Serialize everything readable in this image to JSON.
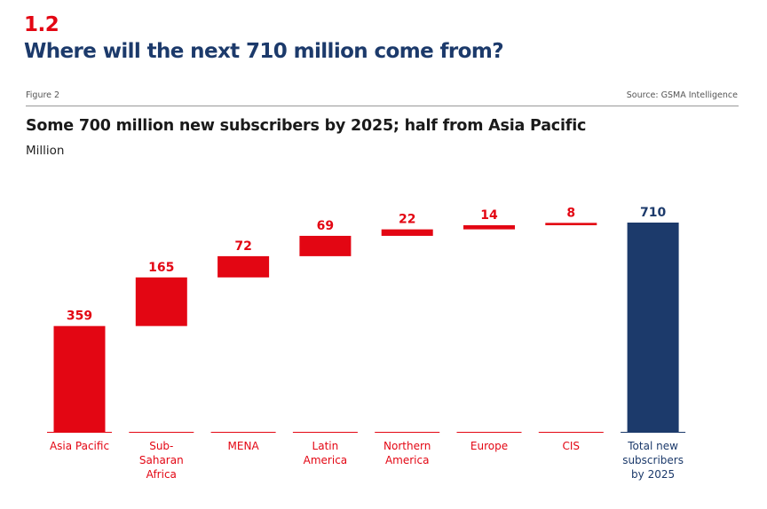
{
  "header": {
    "section_number": "1.2",
    "title": "Where will the next 710 million come from?",
    "figure_label": "Figure 2",
    "source": "Source: GSMA Intelligence"
  },
  "colors": {
    "accent_red": "#e30613",
    "navy": "#1c3a6b"
  },
  "chart_data": {
    "type": "bar",
    "subtype": "waterfall",
    "title": "Some 700 million new subscribers by 2025; half from Asia Pacific",
    "unit_label": "Million",
    "categories": [
      [
        "Asia Pacific"
      ],
      [
        "Sub-",
        "Saharan",
        "Africa"
      ],
      [
        "MENA"
      ],
      [
        "Latin",
        "America"
      ],
      [
        "Northern",
        "America"
      ],
      [
        "Europe"
      ],
      [
        "CIS"
      ],
      [
        "Total new",
        "subscribers",
        "by 2025"
      ]
    ],
    "values": [
      359,
      165,
      72,
      69,
      22,
      14,
      8,
      710
    ],
    "data_labels": [
      "359",
      "165",
      "72",
      "69",
      "22",
      "14",
      "8",
      "710"
    ],
    "is_total": [
      false,
      false,
      false,
      false,
      false,
      false,
      false,
      true
    ],
    "ylim": [
      0,
      710
    ],
    "grid": false,
    "legend": "none"
  }
}
